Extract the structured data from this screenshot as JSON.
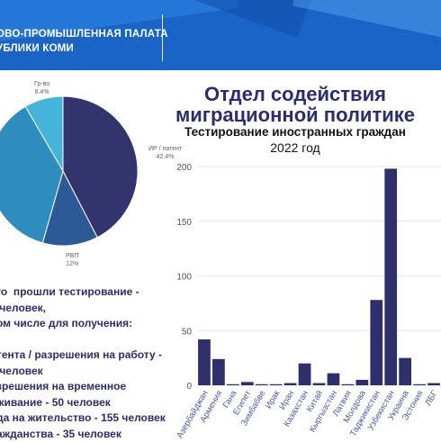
{
  "header": {
    "org_name": "ОВО-ПРОМЫШЛЕННАЯ ПАЛАТА\nУБЛИКИ КОМИ"
  },
  "title": {
    "main": "Отдел содействия миграционной политике",
    "subtitle": "Тестирование иностранных граждан",
    "year": "2022 год"
  },
  "stats_text": "го  прошли тестирование -\n человек,\nом числе для получения:\n\nтента / разрешения на работу -\n человек\nзрешения на временное\nживание - 50 человек\nда на жительство - 155 человек\nажданства - 35 человек",
  "colors": {
    "header_blue": "#1a64c8",
    "title_navy": "#2b2d6e",
    "bar_navy": "#2f2f6b",
    "pie_dark": "#33346e",
    "pie_mid": "#2c5a96",
    "pie_blue": "#2f8cbf",
    "pie_light": "#45b4d9"
  },
  "chart_data": [
    {
      "type": "pie",
      "slices": [
        {
          "label": "ИР / патент",
          "pct_text": "42.4%",
          "value": 42.4
        },
        {
          "label": "РВП",
          "pct_text": "12%",
          "value": 12
        },
        {
          "label": "",
          "pct_text": "",
          "value": 37.2
        },
        {
          "label": "Гр-во",
          "pct_text": "8.4%",
          "value": 8.4
        }
      ]
    },
    {
      "type": "bar",
      "title": "Тестирование иностранных граждан",
      "categories": [
        "Азербайджан",
        "Армения",
        "Гана",
        "Египет",
        "Зимбабве",
        "Ирак",
        "Иран",
        "Казахстан",
        "Китай",
        "Кыргызстан",
        "Латвия",
        "Молдова",
        "Таджикистан",
        "Узбекистан",
        "Украина",
        "Эстония",
        "ЛБГ"
      ],
      "values": [
        42,
        24,
        1,
        3,
        1,
        1,
        2,
        20,
        2,
        11,
        1,
        5,
        78,
        198,
        25,
        1,
        2
      ],
      "ylim": [
        0,
        200
      ],
      "yticks": [
        0,
        50,
        100,
        150,
        200
      ],
      "grid": true
    }
  ]
}
